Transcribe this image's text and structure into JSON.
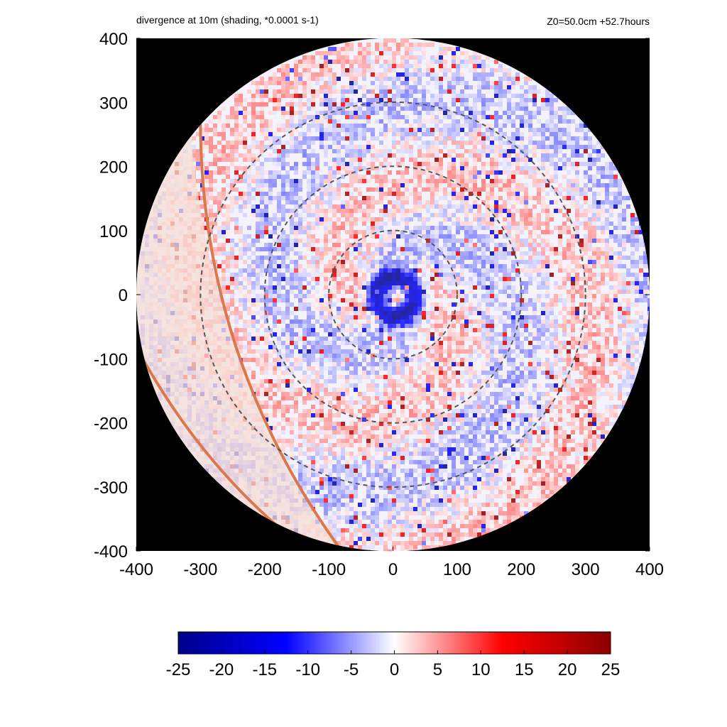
{
  "chart_data": {
    "type": "heatmap",
    "title": "divergence at 10m (shading, *0.0001 s-1)",
    "subtitle": "Z0=50.0cm  +52.7hours",
    "xlim": [
      -400,
      400
    ],
    "ylim": [
      -400,
      400
    ],
    "x_ticks": [
      -400,
      -300,
      -200,
      -100,
      0,
      100,
      200,
      300,
      400
    ],
    "y_ticks": [
      -400,
      -300,
      -200,
      -100,
      0,
      100,
      200,
      300,
      400
    ],
    "x_tick_labels": [
      "-400",
      "-300",
      "-200",
      "-100",
      "0",
      "100",
      "200",
      "300",
      "400"
    ],
    "y_tick_labels": [
      "-400",
      "-300",
      "-200",
      "-100",
      "0",
      "100",
      "200",
      "300",
      "400"
    ],
    "domain_radius": 400,
    "range_rings": [
      100,
      200,
      300
    ],
    "colorbar": {
      "min": -25,
      "max": 25,
      "ticks": [
        -25,
        -20,
        -15,
        -10,
        -5,
        0,
        5,
        10,
        15,
        20,
        25
      ],
      "tick_labels": [
        "-25",
        "-20",
        "-15",
        "-10",
        "-5",
        "0",
        "5",
        "10",
        "15",
        "20",
        "25"
      ],
      "colormap": [
        "#00008b",
        "#0000ff",
        "#ffffff",
        "#ff0000",
        "#8b0000"
      ]
    },
    "background_color": "#000000",
    "shaded_sector_color": "#f6ded6",
    "coastline_color": "#d9784c",
    "ring_color": "#555555",
    "grid": false
  }
}
